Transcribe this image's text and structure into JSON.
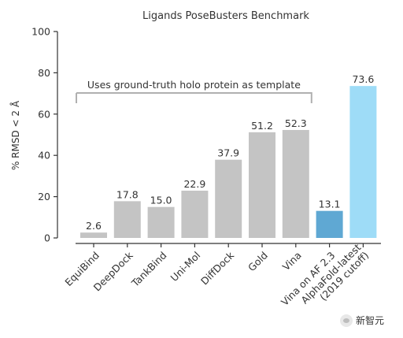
{
  "chart_data": {
    "type": "bar",
    "title": "Ligands PoseBusters Benchmark",
    "ylabel": "% RMSD < 2 Å",
    "xlabel": "",
    "ylim": [
      0,
      100
    ],
    "yticks": [
      0,
      20,
      40,
      60,
      80,
      100
    ],
    "categories": [
      "EquiBind",
      "DeepDock",
      "TankBind",
      "Uni-Mol",
      "DiffDock",
      "Gold",
      "Vina",
      "Vina on AF 2.3",
      "AlphaFold-latest\n(2019 cutoff)"
    ],
    "values": [
      2.6,
      17.8,
      15.0,
      22.9,
      37.9,
      51.2,
      52.3,
      13.1,
      73.6
    ],
    "value_labels": [
      "2.6",
      "17.8",
      "15.0",
      "22.9",
      "37.9",
      "51.2",
      "52.3",
      "13.1",
      "73.6"
    ],
    "bar_colors": [
      "#c4c4c4",
      "#c4c4c4",
      "#c4c4c4",
      "#c4c4c4",
      "#c4c4c4",
      "#c4c4c4",
      "#c4c4c4",
      "#5fa8d3",
      "#9edcf7"
    ],
    "annotation": {
      "text": "Uses ground-truth holo protein as template",
      "span": [
        0,
        6
      ]
    },
    "grid": false
  },
  "watermark": {
    "text": "新智元"
  },
  "colors": {
    "axis": "#333333",
    "text": "#333333",
    "bracket": "#b0b0b0"
  }
}
